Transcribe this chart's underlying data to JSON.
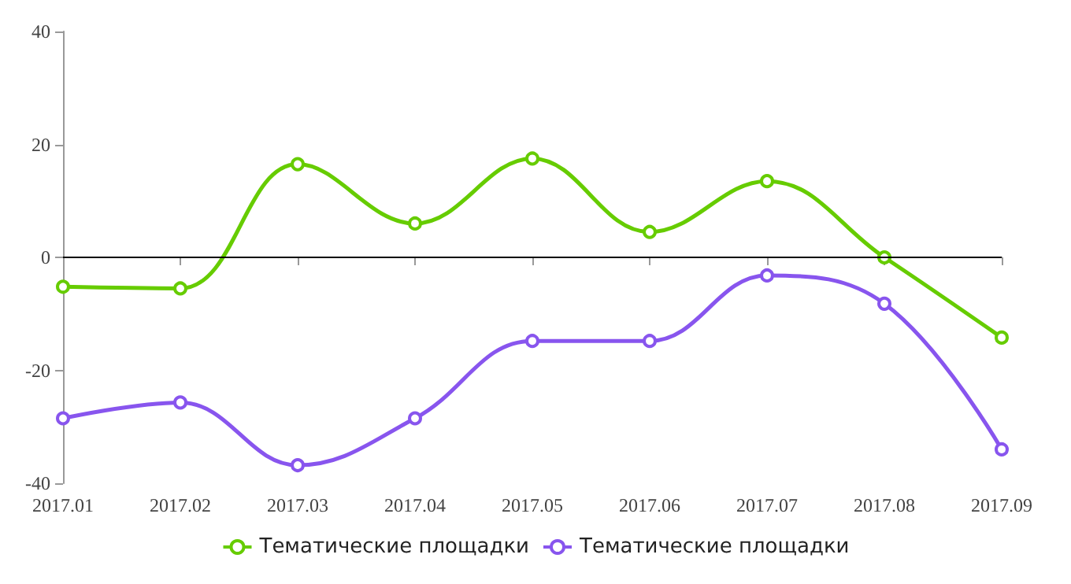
{
  "chart_data": {
    "type": "line",
    "categories": [
      "2017.01",
      "2017.02",
      "2017.03",
      "2017.04",
      "2017.05",
      "2017.06",
      "2017.07",
      "2017.08",
      "2017.09"
    ],
    "series": [
      {
        "name": "Тематические площадки",
        "color": "#66cc00",
        "values": [
          -5.2,
          -5.5,
          16.5,
          6,
          17.5,
          4.5,
          13.5,
          0,
          -14.2
        ]
      },
      {
        "name": "Тематические площадки",
        "color": "#8855ee",
        "values": [
          -28.5,
          -25.7,
          -36.8,
          -28.5,
          -14.8,
          -14.8,
          -3.2,
          -8.2,
          -34
        ]
      }
    ],
    "ylim": [
      -40,
      40
    ],
    "yticks": [
      -40,
      -20,
      0,
      20,
      40
    ],
    "grid": false,
    "legend": "bottom",
    "marker": "circle",
    "line_style": "solid",
    "ref_lines": [
      {
        "axis": "y",
        "value": 0,
        "color": "#000000"
      }
    ]
  }
}
